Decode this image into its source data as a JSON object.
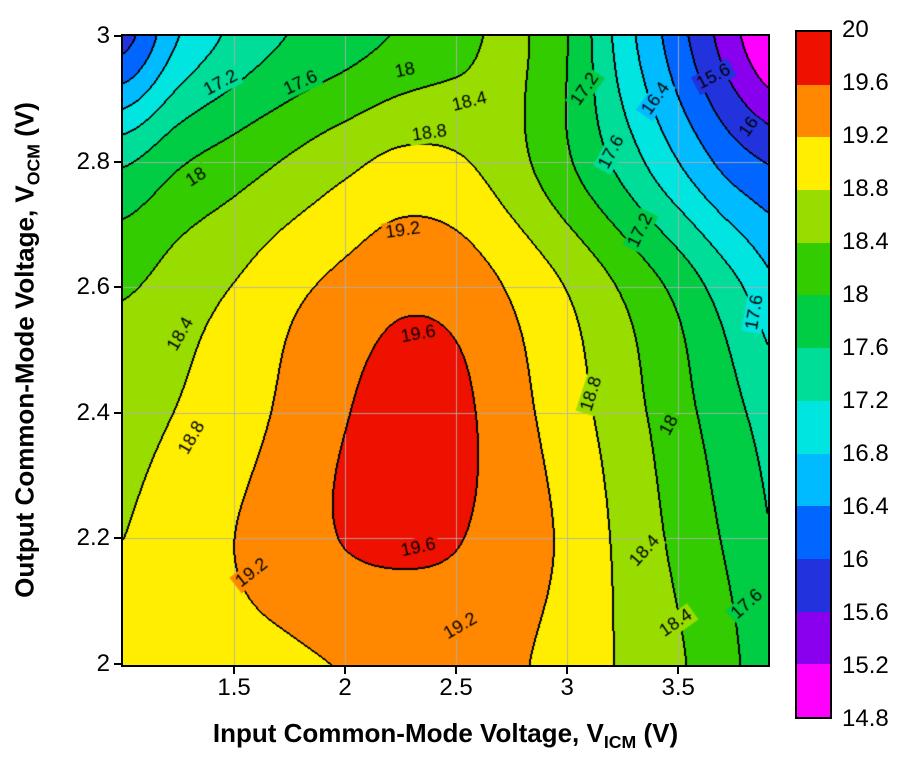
{
  "axes": {
    "x": {
      "label_prefix": "Input Common-Mode Voltage, V",
      "label_sub": "ICM",
      "label_suffix": " (V)",
      "range": [
        1.0,
        3.9
      ],
      "ticks": [
        {
          "v": 1.5,
          "label": "1.5"
        },
        {
          "v": 2.0,
          "label": "2"
        },
        {
          "v": 2.5,
          "label": "2.5"
        },
        {
          "v": 3.0,
          "label": "3"
        },
        {
          "v": 3.5,
          "label": "3.5"
        }
      ]
    },
    "y": {
      "label_prefix": "Output Common-Mode Voltage, V",
      "label_sub": "OCM",
      "label_suffix": " (V)",
      "range": [
        2.0,
        3.0
      ],
      "ticks": [
        {
          "v": 3.0,
          "label": "3"
        },
        {
          "v": 2.8,
          "label": "2.8"
        },
        {
          "v": 2.6,
          "label": "2.6"
        },
        {
          "v": 2.4,
          "label": "2.4"
        },
        {
          "v": 2.2,
          "label": "2.2"
        },
        {
          "v": 2.0,
          "label": "2"
        }
      ]
    }
  },
  "colorbar": {
    "min": 14.8,
    "max": 20,
    "step": 0.4,
    "labels_top_to_bottom": [
      "20",
      "19.6",
      "19.2",
      "18.8",
      "18.4",
      "18",
      "17.6",
      "17.2",
      "16.8",
      "16.4",
      "16",
      "15.6",
      "15.2",
      "14.8"
    ],
    "colors_low_to_high": [
      "#FF00FF",
      "#8800EE",
      "#2233DD",
      "#0066FF",
      "#00BBFF",
      "#00E5E0",
      "#00DD99",
      "#00CC44",
      "#33CC00",
      "#99DD00",
      "#FFEE00",
      "#FF8800",
      "#EE1100"
    ]
  },
  "chart_data": {
    "type": "heatmap",
    "subtype": "filled-contour",
    "title": "",
    "xlabel": "Input Common-Mode Voltage, V_ICM (V)",
    "ylabel": "Output Common-Mode Voltage, V_OCM (V)",
    "xlim": [
      1.0,
      3.9
    ],
    "ylim": [
      2.0,
      3.0
    ],
    "contour_interval": 0.4,
    "contour_min": 14.8,
    "contour_max": 20,
    "grid_on": true,
    "x_grid": {
      "start": 1.0,
      "step": 0.25,
      "count": 13
    },
    "y_grid": {
      "start": 2.0,
      "step": 0.2,
      "count": 6
    },
    "values": [
      [
        18.85,
        19.0,
        19.1,
        19.15,
        19.22,
        19.3,
        19.32,
        19.25,
        19.05,
        18.75,
        18.45,
        18.05,
        17.6
      ],
      [
        18.8,
        19.0,
        19.2,
        19.4,
        19.62,
        19.68,
        19.62,
        19.4,
        19.12,
        18.7,
        18.3,
        17.9,
        17.5
      ],
      [
        18.65,
        18.82,
        19.02,
        19.3,
        19.58,
        19.78,
        19.7,
        19.35,
        18.98,
        18.58,
        18.15,
        17.7,
        17.3
      ],
      [
        18.35,
        18.6,
        18.82,
        19.1,
        19.32,
        19.5,
        19.45,
        19.15,
        18.78,
        18.35,
        17.88,
        17.3,
        16.75
      ],
      [
        17.55,
        17.95,
        18.2,
        18.45,
        18.7,
        18.9,
        18.85,
        18.55,
        18.05,
        17.45,
        16.8,
        16.2,
        15.9
      ],
      [
        15.85,
        16.8,
        17.3,
        17.62,
        17.82,
        18.05,
        18.25,
        18.48,
        18.0,
        17.0,
        16.15,
        15.3,
        14.55
      ]
    ],
    "contour_labels": [
      {
        "text": "17.2",
        "x": 1.44,
        "y": 2.925,
        "angle": -28
      },
      {
        "text": "17.6",
        "x": 1.8,
        "y": 2.925,
        "angle": -25
      },
      {
        "text": "18",
        "x": 2.27,
        "y": 2.945,
        "angle": -12
      },
      {
        "text": "18.4",
        "x": 2.56,
        "y": 2.895,
        "angle": -14
      },
      {
        "text": "17.2",
        "x": 3.08,
        "y": 2.915,
        "angle": -55
      },
      {
        "text": "16.4",
        "x": 3.4,
        "y": 2.9,
        "angle": -55
      },
      {
        "text": "15.6",
        "x": 3.66,
        "y": 2.935,
        "angle": -28
      },
      {
        "text": "16",
        "x": 3.82,
        "y": 2.855,
        "angle": -55
      },
      {
        "text": "17.6",
        "x": 3.2,
        "y": 2.815,
        "angle": -62
      },
      {
        "text": "17.2",
        "x": 3.33,
        "y": 2.69,
        "angle": -64
      },
      {
        "text": "18",
        "x": 1.33,
        "y": 2.775,
        "angle": -33
      },
      {
        "text": "18.4",
        "x": 1.26,
        "y": 2.525,
        "angle": -60
      },
      {
        "text": "18.8",
        "x": 1.31,
        "y": 2.36,
        "angle": -60
      },
      {
        "text": "18.8",
        "x": 2.38,
        "y": 2.845,
        "angle": -8
      },
      {
        "text": "19.2",
        "x": 2.26,
        "y": 2.69,
        "angle": -8
      },
      {
        "text": "19.6",
        "x": 2.33,
        "y": 2.525,
        "angle": -10
      },
      {
        "text": "19.6",
        "x": 2.33,
        "y": 2.185,
        "angle": -12
      },
      {
        "text": "19.2",
        "x": 1.58,
        "y": 2.145,
        "angle": -38
      },
      {
        "text": "19.2",
        "x": 2.52,
        "y": 2.06,
        "angle": -30
      },
      {
        "text": "18.8",
        "x": 3.11,
        "y": 2.43,
        "angle": -72
      },
      {
        "text": "18",
        "x": 3.46,
        "y": 2.38,
        "angle": -62
      },
      {
        "text": "18.4",
        "x": 3.35,
        "y": 2.18,
        "angle": -48
      },
      {
        "text": "18.4",
        "x": 3.49,
        "y": 2.065,
        "angle": -35
      },
      {
        "text": "17.6",
        "x": 3.845,
        "y": 2.56,
        "angle": -80
      },
      {
        "text": "17.6",
        "x": 3.81,
        "y": 2.095,
        "angle": -42
      }
    ]
  }
}
